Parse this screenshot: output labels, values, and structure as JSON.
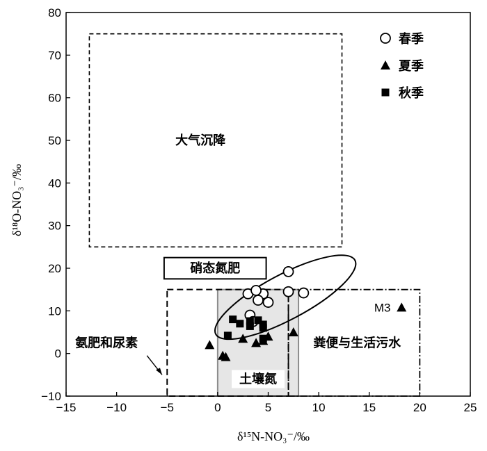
{
  "chart_data": {
    "type": "scatter",
    "xlabel": "δ¹⁵N-NO₃⁻/‰",
    "ylabel": "δ¹⁸O-NO₃⁻/‰",
    "xlim": [
      -15,
      25
    ],
    "ylim": [
      -10,
      80
    ],
    "xticks": [
      -15,
      -10,
      -5,
      0,
      5,
      10,
      15,
      20,
      25
    ],
    "yticks": [
      -10,
      0,
      10,
      20,
      30,
      40,
      50,
      60,
      70,
      80
    ],
    "xtick_labels": [
      "−15",
      "−10",
      "−5",
      "0",
      "5",
      "10",
      "15",
      "20",
      "25"
    ],
    "ytick_labels": [
      "−10",
      "0",
      "10",
      "20",
      "30",
      "40",
      "50",
      "60",
      "70",
      "80"
    ],
    "grid": false,
    "legend_position": "top-right",
    "regions": [
      {
        "label": "大气沉降",
        "x": [
          -12.7,
          12.3
        ],
        "y": [
          25,
          75
        ],
        "style": "dashed"
      },
      {
        "label": "硝态氮肥",
        "x": [
          -5.3,
          4.8
        ],
        "y": [
          17.5,
          22.5
        ],
        "style": "solid-box"
      },
      {
        "label": "氨肥和尿素",
        "x": [
          -5,
          7
        ],
        "y": [
          -10,
          15
        ],
        "style": "dashed"
      },
      {
        "label": "土壤氮",
        "x": [
          0,
          8
        ],
        "y": [
          -10,
          15
        ],
        "style": "gray-fill"
      },
      {
        "label": "粪便与生活污水",
        "x": [
          7,
          20
        ],
        "y": [
          -10,
          15
        ],
        "style": "dash-dot"
      }
    ],
    "ellipse": {
      "center": [
        6.7,
        13.2
      ],
      "semi_axes": [
        7.8,
        5.3
      ],
      "rotation_deg": 28
    },
    "annotations": [
      {
        "text": "M3",
        "x": 16.3,
        "y": 10.8
      }
    ],
    "series": [
      {
        "name": "春季",
        "marker": "circle",
        "points": [
          [
            3,
            14
          ],
          [
            4.5,
            14
          ],
          [
            4,
            12.5
          ],
          [
            5,
            12
          ],
          [
            3.8,
            14.8
          ],
          [
            7,
            19.2
          ],
          [
            7,
            14.5
          ],
          [
            8.5,
            14.2
          ],
          [
            3.2,
            9
          ],
          [
            3.5,
            7.5
          ]
        ]
      },
      {
        "name": "夏季",
        "marker": "triangle",
        "points": [
          [
            -0.8,
            2
          ],
          [
            0.5,
            -0.5
          ],
          [
            0.8,
            -0.8
          ],
          [
            2.5,
            3.5
          ],
          [
            3.8,
            2.5
          ],
          [
            4.5,
            3
          ],
          [
            5,
            4
          ],
          [
            7.5,
            5
          ],
          [
            18.2,
            10.8
          ]
        ]
      },
      {
        "name": "秋季",
        "marker": "square",
        "points": [
          [
            1,
            4.2
          ],
          [
            1.5,
            8
          ],
          [
            2.2,
            7
          ],
          [
            3.2,
            7.6
          ],
          [
            4,
            7.8
          ],
          [
            4.5,
            6.8
          ],
          [
            4.5,
            6
          ],
          [
            3.2,
            6.4
          ],
          [
            4.5,
            3.5
          ]
        ]
      }
    ]
  }
}
